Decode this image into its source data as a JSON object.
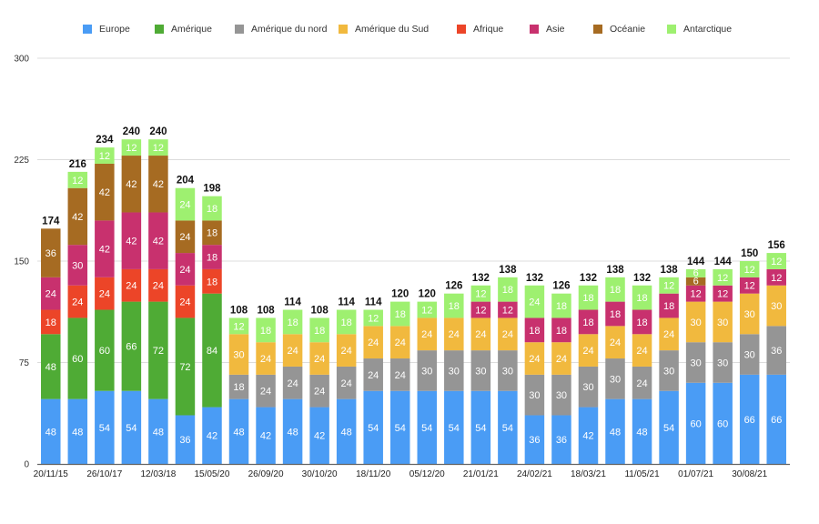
{
  "chart_data": {
    "type": "bar",
    "stacked": true,
    "title": "",
    "xlabel": "",
    "ylabel": "",
    "ylim": [
      0,
      300
    ],
    "yticks": [
      0,
      75,
      150,
      225,
      300
    ],
    "grid": true,
    "legend_position": "top",
    "categories": [
      "20/11/15",
      "",
      "26/10/17",
      "",
      "12/03/18",
      "",
      "15/05/20",
      "",
      "26/09/20",
      "",
      "30/10/20",
      "",
      "18/11/20",
      "",
      "05/12/20",
      "",
      "21/01/21",
      "",
      "24/02/21",
      "",
      "18/03/21",
      "",
      "11/05/21",
      "",
      "01/07/21",
      "",
      "30/08/21",
      ""
    ],
    "series": [
      {
        "name": "Europe",
        "color": "#4a9cf5",
        "values": [
          48,
          48,
          54,
          54,
          48,
          36,
          42,
          48,
          42,
          48,
          42,
          48,
          54,
          54,
          54,
          54,
          54,
          54,
          36,
          36,
          42,
          48,
          48,
          54,
          60,
          60,
          66,
          66
        ]
      },
      {
        "name": "Amérique",
        "color": "#4fab35",
        "values": [
          48,
          60,
          60,
          66,
          72,
          72,
          84,
          0,
          0,
          0,
          0,
          0,
          0,
          0,
          0,
          0,
          0,
          0,
          0,
          0,
          0,
          0,
          0,
          0,
          0,
          0,
          0,
          0
        ]
      },
      {
        "name": "Amérique du nord",
        "color": "#959595",
        "values": [
          0,
          0,
          0,
          0,
          0,
          0,
          0,
          18,
          24,
          24,
          24,
          24,
          24,
          24,
          30,
          30,
          30,
          30,
          30,
          30,
          30,
          30,
          24,
          30,
          30,
          30,
          30,
          36
        ]
      },
      {
        "name": "Amérique du Sud",
        "color": "#f1b93e",
        "values": [
          0,
          0,
          0,
          0,
          0,
          0,
          0,
          30,
          24,
          24,
          24,
          24,
          24,
          24,
          24,
          24,
          24,
          24,
          24,
          24,
          24,
          24,
          24,
          24,
          30,
          30,
          30,
          30
        ]
      },
      {
        "name": "Afrique",
        "color": "#ec4528",
        "values": [
          18,
          24,
          24,
          24,
          24,
          24,
          18,
          0,
          0,
          0,
          0,
          0,
          0,
          0,
          0,
          0,
          0,
          0,
          0,
          0,
          0,
          0,
          0,
          0,
          0,
          0,
          0,
          0
        ]
      },
      {
        "name": "Asie",
        "color": "#c8316e",
        "values": [
          24,
          30,
          42,
          42,
          42,
          24,
          18,
          0,
          0,
          0,
          0,
          0,
          0,
          0,
          0,
          0,
          12,
          12,
          18,
          18,
          18,
          18,
          18,
          18,
          12,
          12,
          12,
          12
        ]
      },
      {
        "name": "Océanie",
        "color": "#a66b22",
        "values": [
          36,
          42,
          42,
          42,
          42,
          24,
          18,
          0,
          0,
          0,
          0,
          0,
          0,
          0,
          0,
          0,
          0,
          0,
          0,
          0,
          0,
          0,
          0,
          0,
          6,
          0,
          0,
          0
        ]
      },
      {
        "name": "Antarctique",
        "color": "#9ef070",
        "values": [
          0,
          12,
          12,
          12,
          12,
          24,
          18,
          12,
          18,
          18,
          18,
          18,
          12,
          18,
          12,
          18,
          12,
          18,
          24,
          18,
          18,
          18,
          18,
          12,
          6,
          12,
          12,
          12
        ]
      }
    ],
    "totals": [
      174,
      216,
      234,
      240,
      240,
      204,
      198,
      108,
      108,
      114,
      108,
      114,
      114,
      120,
      120,
      126,
      132,
      138,
      132,
      126,
      132,
      138,
      132,
      138,
      144,
      144,
      150,
      156
    ]
  }
}
